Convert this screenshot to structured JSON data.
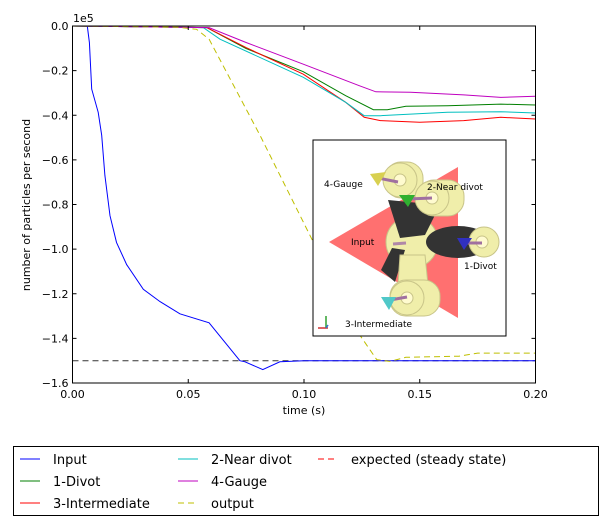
{
  "chart_data": {
    "type": "line",
    "title": "",
    "xlabel": "time (s)",
    "ylabel": "number of particles per second",
    "y_offset_label": "1e5",
    "xlim": [
      0.0,
      0.2
    ],
    "ylim": [
      -1.6,
      0.0
    ],
    "y_scale_factor": 100000,
    "grid": false,
    "legend_position": "below plot",
    "x_ticks": [
      "0.00",
      "0.05",
      "0.10",
      "0.15",
      "0.20"
    ],
    "x_tick_values": [
      0,
      0.05,
      0.1,
      0.15,
      0.2
    ],
    "y_ticks": [
      "0.0",
      "−0.2",
      "−0.4",
      "−0.6",
      "−0.8",
      "−1.0",
      "−1.2",
      "−1.4",
      "−1.6"
    ],
    "y_tick_values": [
      0,
      -0.2,
      -0.4,
      -0.6,
      -0.8,
      -1.0,
      -1.2,
      -1.4,
      -1.6
    ],
    "series": [
      {
        "name": "Input",
        "color": "#0000ff",
        "style": "solid",
        "x": [
          0,
          0.0064,
          0.0073,
          0.0083,
          0.0111,
          0.0126,
          0.014,
          0.0162,
          0.019,
          0.0234,
          0.0306,
          0.0378,
          0.0464,
          0.059,
          0.0723,
          0.0745,
          0.0822,
          0.0896,
          0.1,
          0.2
        ],
        "y": [
          0,
          0,
          -0.074,
          -0.283,
          -0.387,
          -0.49,
          -0.67,
          -0.85,
          -0.97,
          -1.07,
          -1.18,
          -1.235,
          -1.29,
          -1.33,
          -1.5,
          -1.505,
          -1.54,
          -1.505,
          -1.5,
          -1.5
        ]
      },
      {
        "name": "1-Divot",
        "color": "#007f00",
        "style": "solid",
        "x": [
          0,
          0.058,
          0.075,
          0.0997,
          0.118,
          0.13,
          0.136,
          0.144,
          0.162,
          0.185,
          0.2
        ],
        "y": [
          0,
          -0.007,
          -0.101,
          -0.205,
          -0.3125,
          -0.375,
          -0.375,
          -0.36,
          -0.357,
          -0.35,
          -0.354
        ]
      },
      {
        "name": "3-Intermediate",
        "color": "#ff0000",
        "style": "solid",
        "x": [
          0,
          0.058,
          0.075,
          0.0997,
          0.118,
          0.126,
          0.133,
          0.15,
          0.169,
          0.185,
          0.2
        ],
        "y": [
          0,
          -0.007,
          -0.097,
          -0.216,
          -0.342,
          -0.409,
          -0.424,
          -0.431,
          -0.424,
          -0.409,
          -0.417
        ]
      },
      {
        "name": "2-Near divot",
        "color": "#00bfbf",
        "style": "solid",
        "x": [
          0,
          0.0565,
          0.0637,
          0.0997,
          0.118,
          0.126,
          0.133,
          0.162,
          0.185,
          0.2
        ],
        "y": [
          0,
          -0.007,
          -0.059,
          -0.23,
          -0.342,
          -0.402,
          -0.402,
          -0.387,
          -0.384,
          -0.39
        ]
      },
      {
        "name": "4-Gauge",
        "color": "#bf00bf",
        "style": "solid",
        "x": [
          0,
          0.059,
          0.075,
          0.0997,
          0.124,
          0.131,
          0.146,
          0.169,
          0.185,
          0.2
        ],
        "y": [
          0,
          -0.007,
          -0.074,
          -0.171,
          -0.268,
          -0.295,
          -0.297,
          -0.309,
          -0.32,
          -0.315
        ]
      },
      {
        "name": "output",
        "color": "#bfbf00",
        "style": "dashed",
        "x": [
          0,
          0.045,
          0.0536,
          0.059,
          0.081,
          0.124,
          0.1314,
          0.137,
          0.144,
          0.167,
          0.175,
          0.2
        ],
        "y": [
          0,
          -0.005,
          -0.015,
          -0.059,
          -0.49,
          -1.384,
          -1.495,
          -1.503,
          -1.485,
          -1.48,
          -1.466,
          -1.466
        ]
      },
      {
        "name": "expected (steady state)",
        "color": "#ff0000",
        "style": "dashed",
        "x": [
          0,
          0.2
        ],
        "y": [
          -1.5,
          -1.5
        ]
      }
    ]
  },
  "inset": {
    "labels": {
      "gauge": "4-Gauge",
      "near_divot": "2-Near divot",
      "input": "Input",
      "divot": "1-Divot",
      "intermediate": "3-Intermediate"
    },
    "colors": {
      "triangle": "#ff7070",
      "body": "#f0eeaa",
      "shadow": "#333333"
    }
  }
}
